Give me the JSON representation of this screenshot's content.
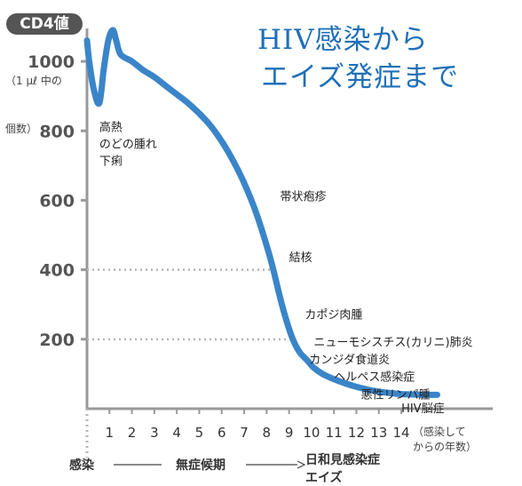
{
  "chart_data": {
    "type": "line",
    "title_lines": [
      "HIV感染から",
      "エイズ発症まで"
    ],
    "y_badge": "CD4値",
    "y_unit_lines": [
      "（1 μℓ 中の",
      "個数）"
    ],
    "x_unit_lines": [
      "（感染して",
      "からの年数）"
    ],
    "ylim": [
      0,
      1100
    ],
    "xlim": [
      0,
      15.5
    ],
    "y_ticks": [
      {
        "value": 200,
        "label": "200"
      },
      {
        "value": 400,
        "label": "400"
      },
      {
        "value": 600,
        "label": "600"
      },
      {
        "value": 800,
        "label": "800"
      },
      {
        "value": 1000,
        "label": "1000"
      }
    ],
    "x_ticks": [
      {
        "value": 1,
        "label": "1"
      },
      {
        "value": 2,
        "label": "2"
      },
      {
        "value": 3,
        "label": "3"
      },
      {
        "value": 4,
        "label": "4"
      },
      {
        "value": 5,
        "label": "5"
      },
      {
        "value": 6,
        "label": "6"
      },
      {
        "value": 7,
        "label": "7"
      },
      {
        "value": 8,
        "label": "8"
      },
      {
        "value": 9,
        "label": "9"
      },
      {
        "value": 10,
        "label": "10"
      },
      {
        "value": 11,
        "label": "11"
      },
      {
        "value": 12,
        "label": "12"
      },
      {
        "value": 13,
        "label": "13"
      },
      {
        "value": 14,
        "label": "14"
      }
    ],
    "reference_lines": [
      200,
      400
    ],
    "series": [
      {
        "color": "#3a85c9",
        "x": [
          0,
          0.1,
          0.3,
          0.55,
          0.75,
          0.95,
          1.15,
          1.3,
          1.5,
          2.0,
          2.5,
          3.0,
          3.5,
          4.0,
          4.5,
          5.0,
          5.5,
          6.0,
          6.5,
          7.0,
          7.5,
          8.0,
          8.3,
          8.6,
          8.9,
          9.2,
          9.5,
          9.8,
          10.1,
          10.5,
          11.0,
          11.5,
          12.0,
          12.5,
          13.0,
          13.5,
          14.0,
          14.5,
          15.0,
          15.6
        ],
        "y": [
          1060,
          1000,
          920,
          880,
          980,
          1060,
          1090,
          1060,
          1020,
          1000,
          975,
          955,
          930,
          905,
          880,
          850,
          815,
          770,
          715,
          650,
          570,
          470,
          400,
          320,
          250,
          195,
          160,
          140,
          118,
          100,
          85,
          73,
          63,
          55,
          49,
          45,
          42,
          41,
          40,
          40
        ]
      }
    ],
    "annotations": [
      {
        "x": 0.55,
        "y": 800,
        "lines": [
          "高熱",
          "のどの腫れ",
          "下痢"
        ]
      },
      {
        "x": 8.6,
        "y": 600,
        "lines": [
          "帯状疱疹"
        ]
      },
      {
        "x": 9.0,
        "y": 425,
        "lines": [
          "結核"
        ]
      },
      {
        "x": 9.7,
        "y": 260,
        "lines": [
          "カポジ肉腫"
        ]
      },
      {
        "x": 10.1,
        "y": 180,
        "lines": [
          "ニューモシスチス(カリニ)肺炎"
        ]
      },
      {
        "x": 9.9,
        "y": 130,
        "lines": [
          "カンジダ食道炎"
        ]
      },
      {
        "x": 11.0,
        "y": 80,
        "lines": [
          "ヘルペス感染症"
        ]
      },
      {
        "x": 12.2,
        "y": 30,
        "lines": [
          "悪性リンパ腫"
        ]
      },
      {
        "x": 14.0,
        "y": -10,
        "lines": [
          "HIV脳症"
        ]
      }
    ],
    "phases": {
      "start": "感染",
      "middle": "無症候期",
      "end_lines": [
        "日和見感染症",
        "エイズ"
      ]
    }
  }
}
